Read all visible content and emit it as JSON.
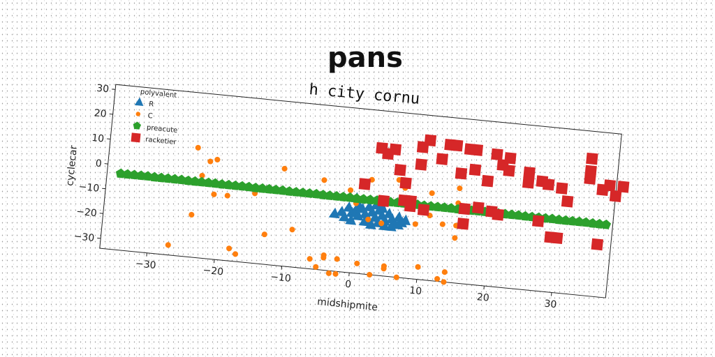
{
  "chart_data": {
    "type": "scatter",
    "title": "pans",
    "subtitle": "h city cornu",
    "xlabel": "midshipmite",
    "ylabel": "cyclecar",
    "xlim": [
      -37,
      38
    ],
    "ylim": [
      -34,
      32
    ],
    "xticks": [
      -30,
      -20,
      -10,
      0,
      10,
      20,
      30
    ],
    "yticks": [
      -30,
      -20,
      -10,
      0,
      10,
      20,
      30
    ],
    "grid": false,
    "legend": {
      "title": "polyvalent",
      "placement": "top-left"
    },
    "series": [
      {
        "name": "R",
        "marker": "triangle",
        "color": "#1f77b4",
        "points": [
          [
            -1,
            -8
          ],
          [
            -0.5,
            -10
          ],
          [
            0,
            -9
          ],
          [
            0.5,
            -11
          ],
          [
            1,
            -8
          ],
          [
            1.5,
            -10
          ],
          [
            2,
            -12
          ],
          [
            2.5,
            -9
          ],
          [
            3,
            -11
          ],
          [
            3.5,
            -13
          ],
          [
            4,
            -10
          ],
          [
            4.5,
            -12
          ],
          [
            5,
            -9
          ],
          [
            5.5,
            -11
          ],
          [
            6,
            -13
          ],
          [
            6.5,
            -10
          ],
          [
            7,
            -12
          ],
          [
            -2,
            -10
          ],
          [
            -1.5,
            -12
          ],
          [
            -0.5,
            -13
          ],
          [
            0.5,
            -7
          ],
          [
            1.5,
            -13
          ],
          [
            2.5,
            -14
          ],
          [
            3.5,
            -8
          ],
          [
            4.5,
            -14
          ],
          [
            5.5,
            -14
          ],
          [
            6.5,
            -13
          ],
          [
            7.5,
            -11
          ],
          [
            -3,
            -11
          ],
          [
            2,
            -7
          ],
          [
            4,
            -7
          ],
          [
            0,
            -4
          ],
          [
            3,
            -6
          ]
        ]
      },
      {
        "name": "C",
        "marker": "circle",
        "color": "#ff7f0e",
        "points": [
          [
            -27,
            -30
          ],
          [
            -24,
            10
          ],
          [
            -24,
            -17
          ],
          [
            -23,
            -1
          ],
          [
            -22,
            5
          ],
          [
            -21,
            6
          ],
          [
            -21,
            -8
          ],
          [
            -19,
            -8
          ],
          [
            -18,
            -29
          ],
          [
            -17,
            -31
          ],
          [
            -15,
            -6
          ],
          [
            -13,
            -22
          ],
          [
            -11,
            5
          ],
          [
            -9,
            -19
          ],
          [
            -6,
            -30
          ],
          [
            -5,
            -33
          ],
          [
            -5,
            2
          ],
          [
            -4,
            -28
          ],
          [
            -4,
            -29
          ],
          [
            -3,
            -35
          ],
          [
            -2,
            -35
          ],
          [
            -2,
            -29
          ],
          [
            -1,
            -1
          ],
          [
            0,
            -6
          ],
          [
            1,
            -30
          ],
          [
            2,
            4
          ],
          [
            2,
            -12
          ],
          [
            3,
            -34
          ],
          [
            4,
            -13
          ],
          [
            5,
            -30
          ],
          [
            5,
            -31
          ],
          [
            6,
            5
          ],
          [
            7,
            2
          ],
          [
            7,
            -34
          ],
          [
            9,
            -12
          ],
          [
            10,
            -29
          ],
          [
            11,
            1
          ],
          [
            11,
            -8
          ],
          [
            13,
            -11
          ],
          [
            13,
            -33
          ],
          [
            14,
            -34
          ],
          [
            14,
            -30
          ],
          [
            15,
            4
          ],
          [
            15,
            -2
          ],
          [
            15,
            -16
          ],
          [
            15,
            -11
          ]
        ]
      },
      {
        "name": "preacute",
        "marker": "pentagon",
        "color": "#2ca02c",
        "points": [
          [
            -35,
            -3.4
          ],
          [
            -34,
            -3.4
          ],
          [
            -33,
            -3.4
          ],
          [
            -32,
            -3.4
          ],
          [
            -31,
            -3.4
          ],
          [
            -30,
            -3.5
          ],
          [
            -29,
            -3.5
          ],
          [
            -28,
            -3.5
          ],
          [
            -27,
            -3.5
          ],
          [
            -26,
            -3.5
          ],
          [
            -25,
            -3.6
          ],
          [
            -24,
            -3.6
          ],
          [
            -23,
            -3.6
          ],
          [
            -22,
            -3.6
          ],
          [
            -21,
            -3.6
          ],
          [
            -20,
            -3.7
          ],
          [
            -19,
            -3.7
          ],
          [
            -18,
            -3.7
          ],
          [
            -17,
            -3.7
          ],
          [
            -16,
            -3.7
          ],
          [
            -15,
            -3.8
          ],
          [
            -14,
            -3.8
          ],
          [
            -13,
            -3.8
          ],
          [
            -12,
            -3.8
          ],
          [
            -11,
            -3.8
          ],
          [
            -10,
            -3.9
          ],
          [
            -9,
            -3.9
          ],
          [
            -8,
            -3.9
          ],
          [
            -7,
            -3.9
          ],
          [
            -6,
            -3.9
          ],
          [
            -5,
            -4
          ],
          [
            -4,
            -4
          ],
          [
            -3,
            -4
          ],
          [
            -2,
            -4
          ],
          [
            -1,
            -4
          ],
          [
            0,
            -4.1
          ],
          [
            1,
            -4.1
          ],
          [
            2,
            -4.1
          ],
          [
            3,
            -4.1
          ],
          [
            4,
            -4.1
          ],
          [
            5,
            -4.2
          ],
          [
            6,
            -4.2
          ],
          [
            7,
            -4.2
          ],
          [
            8,
            -4.2
          ],
          [
            9,
            -4.2
          ],
          [
            10,
            -4.3
          ],
          [
            11,
            -4.3
          ],
          [
            12,
            -4.3
          ],
          [
            13,
            -4.3
          ],
          [
            14,
            -4.3
          ],
          [
            15,
            -4.4
          ],
          [
            16,
            -4.4
          ],
          [
            17,
            -4.4
          ],
          [
            18,
            -4.4
          ],
          [
            19,
            -4.4
          ],
          [
            20,
            -4.5
          ],
          [
            21,
            -4.5
          ],
          [
            22,
            -4.5
          ],
          [
            23,
            -4.5
          ],
          [
            24,
            -4.5
          ],
          [
            25,
            -4.6
          ],
          [
            26,
            -4.6
          ],
          [
            27,
            -4.6
          ],
          [
            28,
            -4.6
          ],
          [
            29,
            -4.6
          ],
          [
            30,
            -4.7
          ],
          [
            31,
            -4.7
          ],
          [
            32,
            -4.7
          ],
          [
            33,
            -4.7
          ],
          [
            34,
            -4.7
          ],
          [
            35,
            -4.8
          ],
          [
            36,
            -4.8
          ],
          [
            37,
            -4.8
          ]
        ]
      },
      {
        "name": "racketier",
        "marker": "square",
        "color": "#d62728",
        "points": [
          [
            1,
            2
          ],
          [
            3,
            17
          ],
          [
            4,
            -4
          ],
          [
            4,
            15
          ],
          [
            5,
            17
          ],
          [
            6,
            9
          ],
          [
            7,
            4
          ],
          [
            7,
            -3
          ],
          [
            8,
            -3
          ],
          [
            8,
            -5
          ],
          [
            9,
            19
          ],
          [
            9,
            12
          ],
          [
            10,
            -6
          ],
          [
            10,
            22
          ],
          [
            12,
            15
          ],
          [
            13,
            21
          ],
          [
            14,
            21
          ],
          [
            15,
            10
          ],
          [
            16,
            20
          ],
          [
            16,
            -4
          ],
          [
            16,
            -10
          ],
          [
            17,
            20
          ],
          [
            17,
            12
          ],
          [
            18,
            -3
          ],
          [
            19,
            8
          ],
          [
            20,
            19
          ],
          [
            20,
            -4
          ],
          [
            21,
            -5
          ],
          [
            21,
            15
          ],
          [
            22,
            18
          ],
          [
            22,
            13
          ],
          [
            25,
            13
          ],
          [
            25,
            9
          ],
          [
            27,
            -6
          ],
          [
            27,
            10
          ],
          [
            28,
            9
          ],
          [
            29,
            -12
          ],
          [
            30,
            -12
          ],
          [
            30,
            8
          ],
          [
            31,
            3
          ],
          [
            34,
            21
          ],
          [
            34,
            16
          ],
          [
            34,
            13
          ],
          [
            36,
            9
          ],
          [
            36,
            -13
          ],
          [
            37,
            11
          ],
          [
            38,
            7
          ],
          [
            39,
            11
          ]
        ]
      }
    ]
  }
}
